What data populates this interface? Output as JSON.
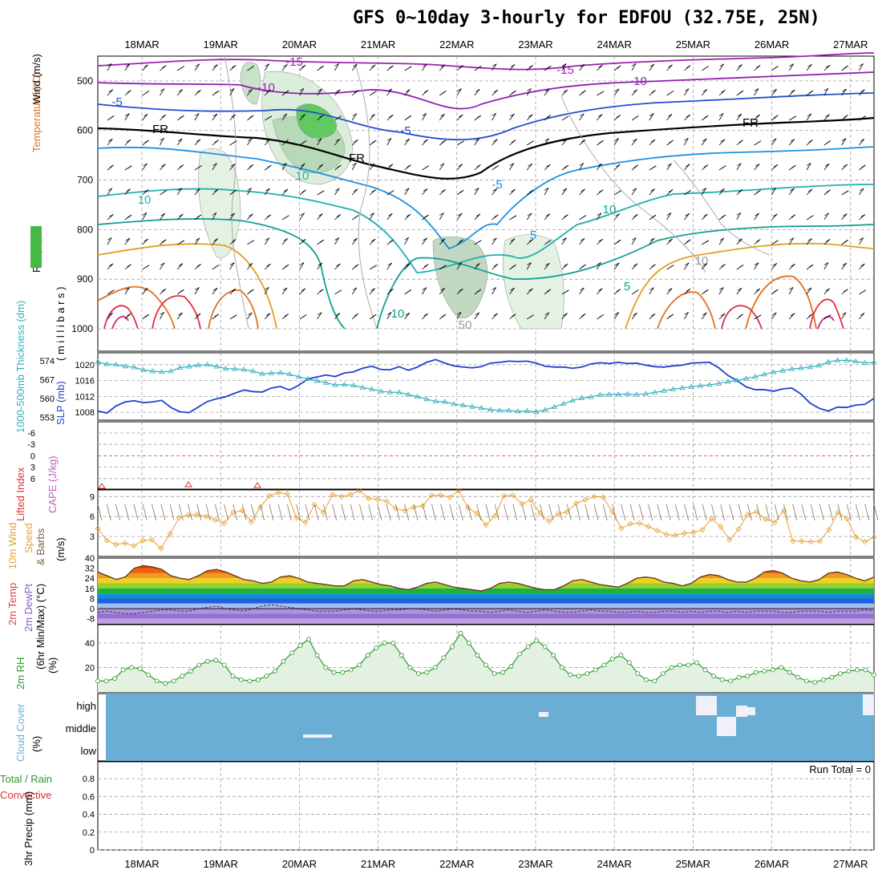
{
  "title": "GFS 0~10day 3-hourly for EDFOU (32.75E, 25N)",
  "dates": [
    "18MAR",
    "19MAR",
    "20MAR",
    "21MAR",
    "22MAR",
    "23MAR",
    "24MAR",
    "25MAR",
    "26MAR",
    "27MAR"
  ],
  "colors": {
    "grid": "#a0a0a0",
    "slp": "#2040d0",
    "thick": "#30b0c0",
    "wind10": "#e8a030",
    "barb": "#806040",
    "rh2m": "#2a9a2a",
    "cloud": "#6aaed6",
    "cape": "#c060c0",
    "li": "#e03030"
  },
  "chart_data": [
    {
      "panel": "upper-air",
      "type": "contour",
      "ylabel_rh": "RH (%)",
      "ylabel_temp": "Temperature (°C)",
      "ylabel_wind": "Wind (m/s)",
      "ylabel_units": "( m i l l i b a r s )",
      "y_ticks": [
        "500",
        "600",
        "700",
        "800",
        "900",
        "1000"
      ],
      "ylim": [
        450,
        1000
      ],
      "labels": [
        "-15",
        "-15",
        "-10",
        "-10",
        "-5",
        "-5",
        "FR",
        "FR",
        "FR",
        "-5",
        "10",
        "10",
        "10",
        "5",
        "5",
        "10",
        "10",
        "50"
      ]
    },
    {
      "panel": "slp-thickness",
      "type": "line",
      "ylabel_left": "1000-500mb Thickness (dm)",
      "ylabel_right": "SLP (mb)",
      "left_ticks": [
        "574",
        "567",
        "560",
        "553"
      ],
      "right_ticks": [
        "1020",
        "1016",
        "1012",
        "1008"
      ],
      "ylim_slp": [
        1006,
        1023
      ],
      "ylim_thick": [
        552,
        577
      ],
      "series": [
        {
          "values": [
            1008.3,
            1007.8,
            1009.6,
            1010.6,
            1010.9,
            1010.4,
            1010.6,
            1011.0,
            1009.2,
            1008.1,
            1007.9,
            1009.3,
            1010.7,
            1011.4,
            1011.9,
            1012.8,
            1013.6,
            1013.2,
            1013.1,
            1014.1,
            1014.5,
            1013.6,
            1014.8,
            1016.4,
            1016.9,
            1017.4,
            1017.0,
            1017.9,
            1018.2,
            1019.1,
            1019.6,
            1018.8,
            1018.7,
            1019.5,
            1018.6,
            1019.4,
            1020.6,
            1021.3,
            1020.4,
            1019.7,
            1019.4,
            1019.2,
            1019.5,
            1020.4,
            1020.6,
            1020.9,
            1020.8,
            1020.9,
            1020.4,
            1019.6,
            1019.4,
            1019.4,
            1019.1,
            1019.4,
            1020.2,
            1020.5,
            1020.3,
            1020.6,
            1020.3,
            1020.4,
            1019.9,
            1019.5,
            1019.4,
            1019.7,
            1019.9,
            1020.4,
            1020.5,
            1020.6,
            1019.2,
            1017.3,
            1016.0,
            1014.4,
            1013.7,
            1013.7,
            1013.3,
            1013.9,
            1014.1,
            1012.6,
            1010.3,
            1009.0,
            1008.3,
            1009.3,
            1009.2,
            1009.8,
            1010.0,
            1011.5
          ]
        },
        {
          "values": [
            573.6,
            572.8,
            572.6,
            572.0,
            571.6,
            570.6,
            570.2,
            569.9,
            570.2,
            571.5,
            571.9,
            572.4,
            572.6,
            571.9,
            571.1,
            571.0,
            570.8,
            570.2,
            569.2,
            569.5,
            569.6,
            569.1,
            568.1,
            567.3,
            566.6,
            565.9,
            565.1,
            565.2,
            564.9,
            564.1,
            563.5,
            562.7,
            562.4,
            562.3,
            561.5,
            560.7,
            559.8,
            559.0,
            558.8,
            558.0,
            557.5,
            557.0,
            556.5,
            555.9,
            555.6,
            555.6,
            555.3,
            555.4,
            555.1,
            555.8,
            556.9,
            558.1,
            559.3,
            560.2,
            560.6,
            561.4,
            561.5,
            561.6,
            561.7,
            561.5,
            561.8,
            562.3,
            562.9,
            563.5,
            564.0,
            564.4,
            564.8,
            565.1,
            565.6,
            566.3,
            566.7,
            567.5,
            568.1,
            569.0,
            569.8,
            570.4,
            571.0,
            571.3,
            571.7,
            572.3,
            573.6,
            574.2,
            574.2,
            573.8,
            573.3,
            573.4
          ]
        }
      ]
    },
    {
      "panel": "cape-li",
      "type": "line",
      "ylabel_li": "Lifted Index",
      "ylabel_cape": "CAPE (J/kg)",
      "li_ticks": [
        "-6",
        "-3",
        "0",
        "3",
        "6"
      ]
    },
    {
      "panel": "wind10m",
      "type": "line",
      "ylabel": "10m Wind Speed & Barbs (m/s)",
      "ylabel_a": "10m Wind",
      "ylabel_b": "Speed",
      "ylabel_c": "& Barbs",
      "ylabel_d": "(m/s)",
      "ticks": [
        "9",
        "6",
        "3"
      ],
      "ylim": [
        0,
        10
      ],
      "values": [
        4.2,
        2.4,
        1.8,
        2.0,
        1.6,
        2.4,
        2.5,
        1.2,
        3.4,
        5.8,
        6.2,
        6.3,
        6.0,
        5.5,
        5.0,
        6.6,
        6.9,
        5.2,
        7.4,
        9.1,
        9.6,
        9.4,
        5.8,
        5.1,
        7.8,
        6.6,
        9.3,
        9.0,
        9.3,
        9.9,
        8.7,
        8.6,
        8.3,
        7.2,
        6.9,
        7.4,
        7.6,
        9.2,
        9.2,
        8.9,
        9.9,
        7.3,
        6.5,
        4.7,
        6.1,
        9.1,
        9.2,
        7.9,
        8.5,
        6.5,
        5.3,
        6.4,
        6.7,
        8.0,
        8.5,
        9.0,
        8.9,
        6.7,
        4.2,
        4.9,
        5.0,
        4.5,
        3.9,
        3.3,
        3.2,
        3.5,
        3.6,
        4.0,
        5.7,
        4.5,
        2.5,
        4.1,
        6.3,
        6.7,
        5.6,
        5.1,
        6.9,
        2.3,
        2.3,
        2.2,
        2.3,
        4.0,
        6.6,
        5.7,
        2.9,
        2.2,
        2.9
      ]
    },
    {
      "panel": "temp2m",
      "type": "area",
      "ylabel_a": "2m Temp",
      "ylabel_b": "2m DewPt",
      "ylabel_c": "(6hr Min/Max) (°C)",
      "ticks": [
        "40",
        "32",
        "24",
        "16",
        "8",
        "0",
        "-8"
      ],
      "ylim": [
        -12,
        40
      ],
      "temp": [
        29,
        26,
        23,
        25,
        32,
        34,
        33,
        31,
        26,
        24,
        23,
        26,
        30,
        31,
        29,
        26,
        23,
        22,
        20,
        21,
        25,
        26,
        24,
        21,
        20,
        19,
        18,
        18,
        22,
        23,
        21,
        19,
        18,
        16,
        15,
        17,
        20,
        21,
        19,
        17,
        16,
        15,
        14,
        16,
        20,
        21,
        20,
        18,
        16,
        15,
        15,
        18,
        22,
        23,
        21,
        19,
        18,
        17,
        20,
        24,
        25,
        24,
        21,
        20,
        18,
        20,
        25,
        27,
        26,
        23,
        21,
        21,
        24,
        29,
        30,
        28,
        24,
        22,
        21,
        23,
        28,
        29,
        27,
        24,
        22,
        25
      ],
      "dewpt": [
        -3,
        -2,
        -3,
        -4,
        -4,
        -3,
        -2,
        -1,
        -1,
        -2,
        -2,
        0,
        1,
        2,
        0,
        -1,
        -2,
        0,
        2,
        3,
        2,
        1,
        0,
        -1,
        -2,
        -2,
        -2,
        -1,
        0,
        -1,
        -2,
        -2,
        -1,
        -1,
        0,
        0,
        -1,
        -2,
        -1,
        0,
        -1,
        -2,
        -2,
        -3,
        -2,
        -1,
        -2,
        -3,
        -2,
        -1,
        -2,
        -3,
        -3,
        -2,
        -1,
        -2,
        -2,
        -3,
        -3,
        -2,
        -3,
        -3,
        -2,
        -2,
        -3,
        -2,
        -3,
        -2,
        -2,
        -3,
        -2,
        -3,
        -2,
        -2,
        -2,
        -3,
        -3,
        -2,
        -2,
        -2,
        -3,
        -2,
        -2,
        -2,
        -1,
        -2
      ]
    },
    {
      "panel": "rh2m",
      "type": "area",
      "ylabel_a": "2m RH",
      "ylabel_b": "(%)",
      "ticks": [
        "40",
        "20"
      ],
      "ylim": [
        0,
        55
      ],
      "values": [
        9,
        9,
        11,
        18,
        20,
        19,
        14,
        9,
        7,
        9,
        13,
        17,
        22,
        25,
        26,
        22,
        13,
        10,
        9,
        10,
        13,
        17,
        25,
        32,
        38,
        43,
        30,
        20,
        16,
        16,
        18,
        22,
        30,
        36,
        40,
        40,
        30,
        20,
        15,
        16,
        20,
        28,
        37,
        48,
        40,
        30,
        22,
        15,
        16,
        21,
        31,
        37,
        42,
        37,
        30,
        20,
        14,
        13,
        15,
        18,
        22,
        27,
        30,
        24,
        15,
        10,
        9,
        15,
        20,
        22,
        22,
        24,
        18,
        13,
        10,
        9,
        12,
        13,
        16,
        17,
        18,
        20,
        16,
        12,
        9,
        8,
        10,
        12,
        15,
        17,
        18,
        18,
        14
      ]
    },
    {
      "panel": "cloud",
      "type": "heatmap",
      "ylabel_a": "Cloud Cover",
      "ylabel_b": "(%)",
      "levels": [
        "high",
        "middle",
        "low"
      ]
    },
    {
      "panel": "precip",
      "type": "bar",
      "ylabel_left1": "Total / Rain",
      "ylabel_left2": "Convective",
      "ylabel": "3hr Precip (mm)",
      "ticks": [
        "0.8",
        "0.6",
        "0.4",
        "0.2",
        "0"
      ],
      "ylim": [
        0,
        0.9
      ],
      "run_total": "Run Total = 0"
    }
  ]
}
